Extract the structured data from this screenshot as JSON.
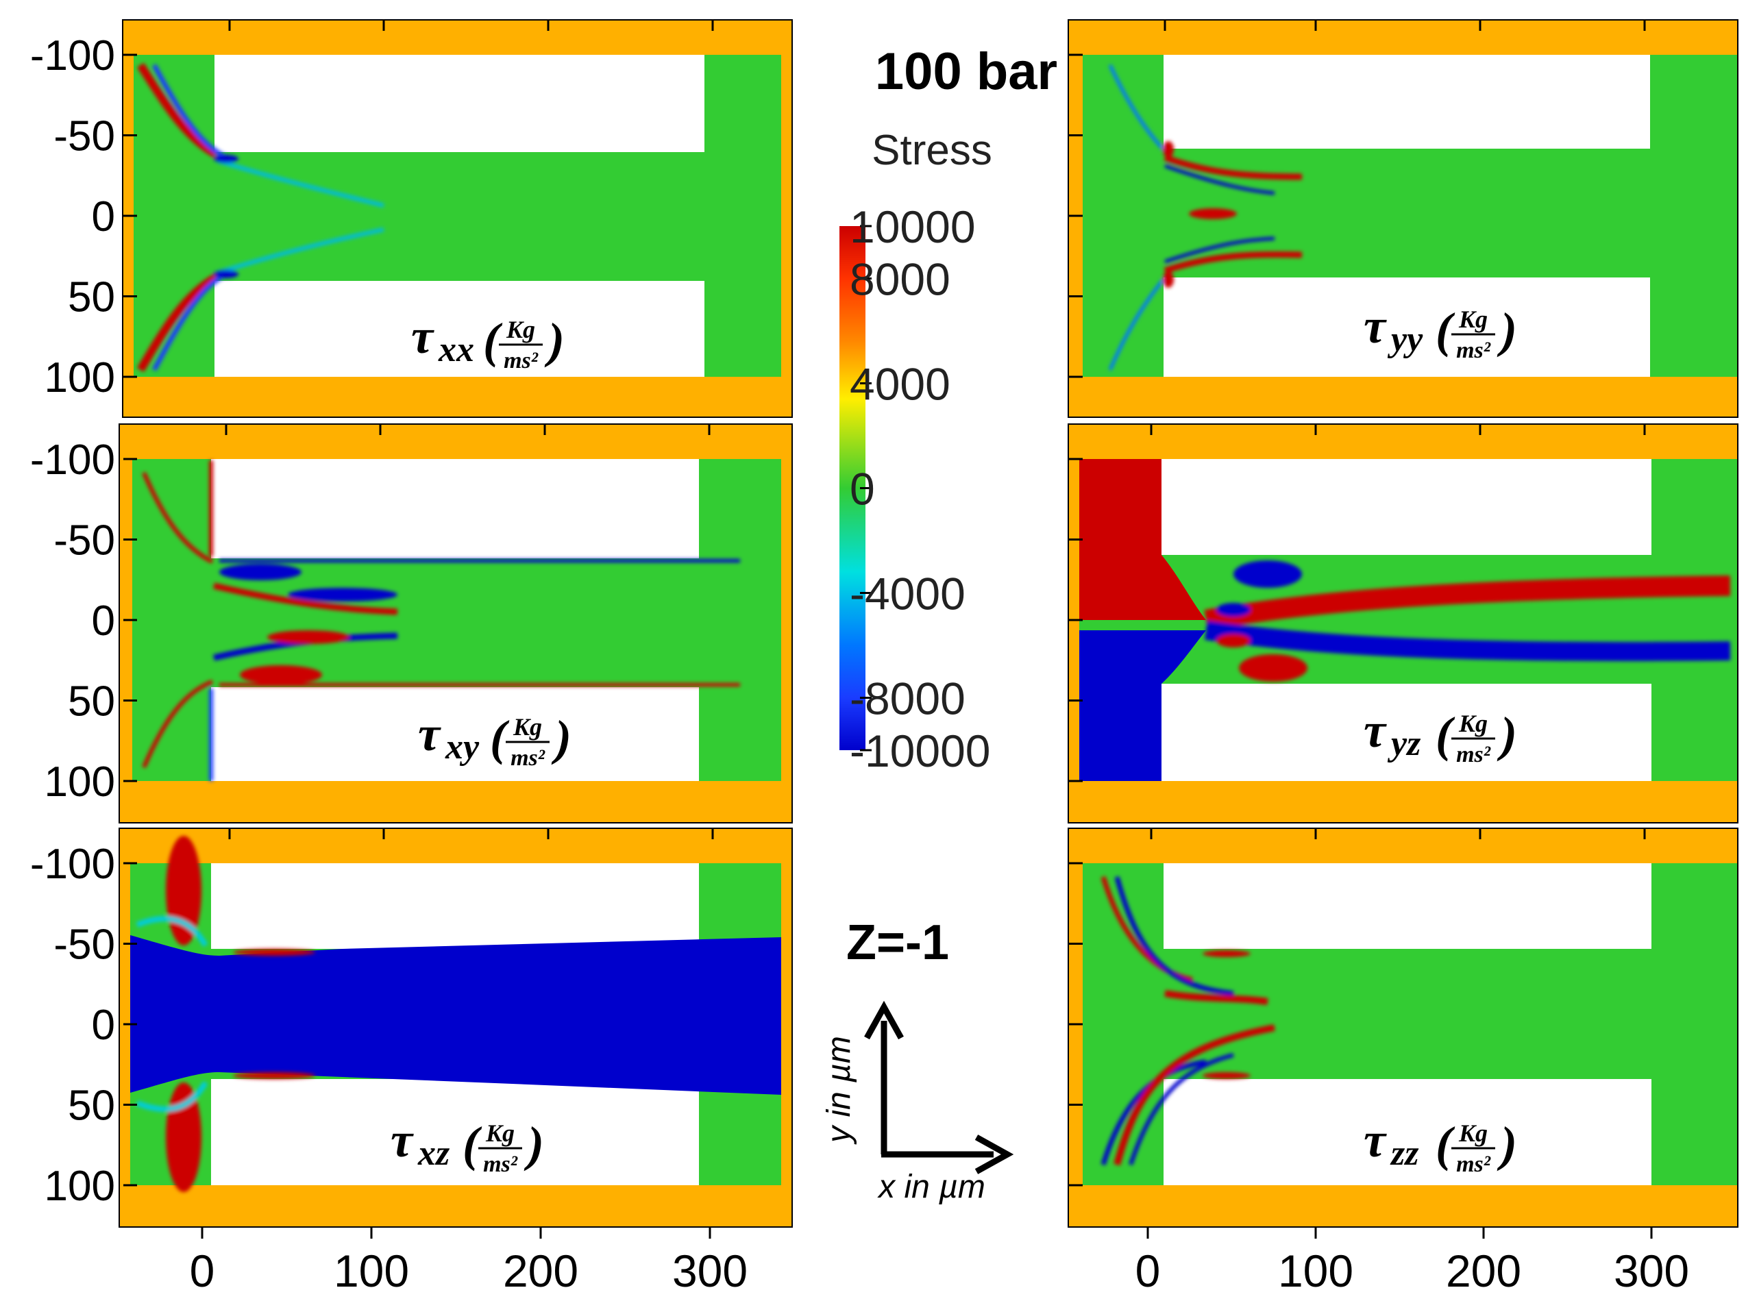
{
  "title": "100 bar",
  "z_label": "Z=-1",
  "colorbar": {
    "title": "Stress",
    "ticks": [
      "10000",
      "8000",
      "4000",
      "0",
      "-4000",
      "-8000",
      "-10000"
    ],
    "tick_values": [
      10000,
      8000,
      4000,
      0,
      -4000,
      -8000,
      -10000
    ],
    "colors": [
      "#cc0000",
      "#ff6600",
      "#ffee00",
      "#33cc33",
      "#00e5ee",
      "#1a3cff",
      "#0000cc"
    ]
  },
  "axes": {
    "y_ticks": [
      "-100",
      "-50",
      "0",
      "50",
      "100"
    ],
    "y_values": [
      -100,
      -50,
      0,
      50,
      100
    ],
    "x_ticks": [
      "0",
      "100",
      "200",
      "300"
    ],
    "x_values": [
      0,
      100,
      200,
      300
    ],
    "x_label": "x in µm",
    "y_label": "y in µm"
  },
  "colors": {
    "wall": "#ffb000",
    "field": "#33cc33",
    "blue": "#0000cc",
    "red": "#cc0000"
  },
  "panels": [
    {
      "id": "txx",
      "sub": "xx",
      "tau": "τ",
      "unit_num": "Kg",
      "unit_den": "ms²",
      "open": "(",
      "close": ")"
    },
    {
      "id": "tyy",
      "sub": "yy",
      "tau": "τ",
      "unit_num": "Kg",
      "unit_den": "ms²",
      "open": "(",
      "close": ")"
    },
    {
      "id": "txy",
      "sub": "xy",
      "tau": "τ",
      "unit_num": "Kg",
      "unit_den": "ms²",
      "open": "(",
      "close": ")"
    },
    {
      "id": "tyz",
      "sub": "yz",
      "tau": "τ",
      "unit_num": "Kg",
      "unit_den": "ms²",
      "open": "(",
      "close": ")"
    },
    {
      "id": "txz",
      "sub": "xz",
      "tau": "τ",
      "unit_num": "Kg",
      "unit_den": "ms²",
      "open": "(",
      "close": ")"
    },
    {
      "id": "tzz",
      "sub": "zz",
      "tau": "τ",
      "unit_num": "Kg",
      "unit_den": "ms²",
      "open": "(",
      "close": ")"
    }
  ]
}
